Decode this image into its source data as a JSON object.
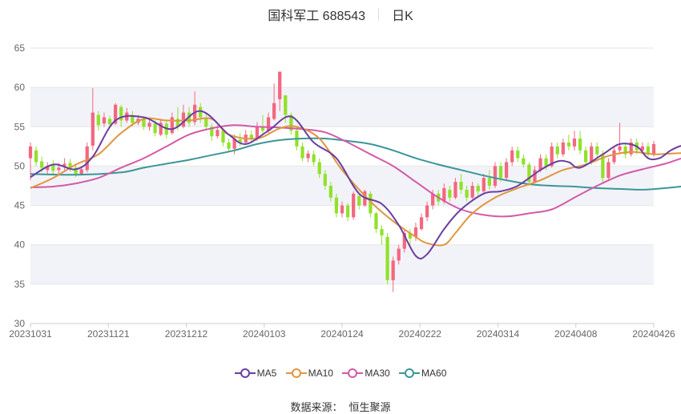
{
  "header": {
    "stock_name_code": "国科军工 688543",
    "period": "日K"
  },
  "footer": {
    "source_label": "数据来源：",
    "source_value": "恒生聚源"
  },
  "colors": {
    "up": "#f4677f",
    "down": "#91e12b",
    "grid": "#e6e6e6",
    "band": "#f2f3f8",
    "ma5": "#6a3fa0",
    "ma10": "#e0963f",
    "ma30": "#d35aa8",
    "ma60": "#3b9698"
  },
  "chart_data": {
    "type": "candlestick",
    "title": "国科军工 688543 日K",
    "ylim": [
      30,
      65
    ],
    "yticks": [
      30,
      35,
      40,
      45,
      50,
      55,
      60,
      65
    ],
    "xtick_labels": [
      "20231031",
      "20231121",
      "20231212",
      "20240103",
      "20240124",
      "20240222",
      "20240314",
      "20240408",
      "20240426"
    ],
    "grid": true,
    "legend_position": "bottom",
    "legend": [
      "MA5",
      "MA10",
      "MA30",
      "MA60"
    ],
    "candles": [
      [
        51.0,
        52.5,
        48.2,
        53.0
      ],
      [
        52.0,
        50.5,
        50.0,
        52.5
      ],
      [
        50.6,
        49.8,
        49.2,
        51.2
      ],
      [
        49.5,
        50.0,
        49.0,
        50.5
      ],
      [
        50.2,
        49.4,
        49.0,
        50.8
      ],
      [
        49.5,
        49.8,
        49.0,
        50.4
      ],
      [
        50.0,
        50.3,
        49.5,
        51.0
      ],
      [
        50.4,
        49.8,
        49.3,
        50.9
      ],
      [
        49.8,
        49.0,
        48.6,
        50.2
      ],
      [
        49.0,
        49.6,
        48.8,
        50.0
      ],
      [
        49.5,
        52.5,
        49.2,
        53.0
      ],
      [
        52.6,
        56.8,
        52.0,
        59.9
      ],
      [
        56.5,
        55.2,
        54.5,
        57.0
      ],
      [
        55.4,
        56.2,
        55.0,
        56.8
      ],
      [
        56.0,
        55.3,
        54.8,
        56.4
      ],
      [
        55.4,
        57.8,
        55.2,
        58.0
      ],
      [
        57.5,
        55.8,
        55.0,
        57.8
      ],
      [
        55.8,
        56.8,
        55.5,
        57.4
      ],
      [
        56.5,
        55.5,
        55.0,
        57.0
      ],
      [
        55.5,
        56.0,
        55.2,
        56.5
      ],
      [
        56.0,
        55.0,
        54.6,
        56.3
      ],
      [
        55.0,
        55.5,
        54.5,
        56.0
      ],
      [
        55.4,
        54.2,
        53.8,
        55.8
      ],
      [
        54.0,
        55.5,
        53.8,
        56.0
      ],
      [
        55.4,
        54.0,
        53.5,
        55.8
      ],
      [
        54.2,
        56.2,
        54.0,
        56.8
      ],
      [
        56.0,
        55.0,
        54.5,
        57.5
      ],
      [
        55.0,
        56.8,
        54.8,
        57.8
      ],
      [
        56.8,
        55.5,
        55.0,
        57.5
      ],
      [
        55.6,
        57.8,
        55.2,
        59.5
      ],
      [
        57.5,
        56.2,
        55.5,
        58.0
      ],
      [
        56.0,
        55.0,
        54.5,
        56.6
      ],
      [
        55.0,
        53.8,
        53.2,
        55.4
      ],
      [
        53.8,
        54.6,
        53.5,
        55.2
      ],
      [
        54.5,
        53.0,
        52.5,
        54.8
      ],
      [
        53.0,
        52.2,
        51.8,
        53.5
      ],
      [
        52.2,
        53.5,
        51.5,
        54.0
      ],
      [
        53.4,
        53.0,
        52.5,
        54.2
      ],
      [
        53.0,
        54.0,
        52.8,
        54.6
      ],
      [
        54.0,
        53.4,
        53.0,
        54.5
      ],
      [
        53.5,
        55.0,
        53.2,
        55.6
      ],
      [
        55.0,
        54.5,
        54.0,
        56.5
      ],
      [
        54.5,
        56.2,
        54.2,
        56.8
      ],
      [
        56.0,
        58.0,
        55.8,
        60.5
      ],
      [
        58.5,
        62.0,
        57.0,
        62.0
      ],
      [
        59.0,
        56.5,
        55.5,
        59.0
      ],
      [
        56.5,
        54.5,
        54.0,
        56.8
      ],
      [
        54.5,
        52.5,
        52.0,
        55.0
      ],
      [
        52.5,
        51.0,
        50.6,
        53.0
      ],
      [
        51.0,
        51.6,
        50.5,
        52.0
      ],
      [
        51.5,
        50.5,
        50.0,
        52.0
      ],
      [
        50.5,
        49.0,
        48.5,
        51.0
      ],
      [
        49.0,
        47.5,
        47.0,
        49.5
      ],
      [
        47.5,
        46.0,
        45.5,
        48.0
      ],
      [
        46.0,
        44.0,
        43.5,
        46.5
      ],
      [
        44.0,
        45.0,
        43.5,
        45.5
      ],
      [
        45.0,
        43.5,
        43.0,
        45.3
      ],
      [
        43.5,
        46.5,
        43.2,
        46.8
      ],
      [
        46.2,
        45.0,
        44.5,
        46.5
      ],
      [
        45.0,
        46.8,
        44.8,
        47.0
      ],
      [
        46.5,
        44.0,
        43.5,
        46.8
      ],
      [
        44.0,
        42.0,
        41.5,
        44.2
      ],
      [
        42.0,
        41.2,
        40.0,
        42.5
      ],
      [
        41.0,
        35.5,
        35.0,
        41.5
      ],
      [
        35.5,
        38.0,
        34.0,
        38.5
      ],
      [
        38.0,
        39.5,
        37.5,
        40.0
      ],
      [
        39.5,
        41.5,
        39.0,
        42.0
      ],
      [
        41.5,
        40.8,
        40.0,
        42.0
      ],
      [
        41.0,
        42.2,
        40.5,
        42.8
      ],
      [
        42.0,
        43.5,
        41.8,
        44.0
      ],
      [
        43.5,
        45.0,
        43.0,
        45.5
      ],
      [
        45.0,
        46.5,
        44.5,
        47.0
      ],
      [
        46.5,
        45.5,
        45.0,
        47.0
      ],
      [
        45.5,
        47.2,
        45.2,
        47.8
      ],
      [
        47.0,
        46.0,
        45.5,
        47.5
      ],
      [
        46.0,
        48.0,
        45.8,
        48.5
      ],
      [
        48.0,
        47.0,
        46.5,
        49.0
      ],
      [
        47.0,
        46.0,
        45.5,
        47.5
      ],
      [
        46.0,
        47.5,
        45.8,
        48.0
      ],
      [
        47.5,
        46.8,
        46.2,
        47.8
      ],
      [
        46.8,
        48.5,
        46.5,
        49.0
      ],
      [
        48.5,
        47.5,
        47.0,
        49.5
      ],
      [
        47.5,
        50.0,
        47.2,
        50.5
      ],
      [
        50.0,
        48.5,
        48.0,
        50.5
      ],
      [
        48.5,
        50.5,
        48.2,
        51.0
      ],
      [
        50.5,
        52.0,
        50.0,
        52.5
      ],
      [
        52.0,
        51.0,
        50.5,
        52.5
      ],
      [
        51.0,
        50.2,
        49.8,
        51.5
      ],
      [
        50.2,
        48.0,
        47.5,
        50.5
      ],
      [
        48.0,
        49.5,
        47.8,
        50.0
      ],
      [
        49.5,
        51.0,
        49.2,
        51.5
      ],
      [
        51.0,
        50.0,
        49.5,
        51.5
      ],
      [
        50.0,
        52.5,
        49.8,
        53.0
      ],
      [
        52.5,
        51.5,
        51.0,
        53.0
      ],
      [
        51.5,
        53.0,
        51.2,
        53.5
      ],
      [
        53.0,
        52.5,
        52.0,
        54.0
      ],
      [
        52.5,
        53.5,
        52.0,
        54.5
      ],
      [
        53.5,
        52.0,
        51.5,
        54.5
      ],
      [
        52.0,
        50.5,
        50.0,
        52.5
      ],
      [
        50.5,
        52.5,
        50.2,
        53.0
      ],
      [
        52.5,
        51.5,
        51.0,
        53.0
      ],
      [
        51.5,
        48.5,
        48.0,
        52.0
      ],
      [
        48.5,
        50.5,
        48.2,
        51.0
      ],
      [
        50.5,
        52.0,
        50.2,
        52.5
      ],
      [
        52.0,
        52.5,
        51.5,
        55.5
      ],
      [
        52.5,
        51.5,
        51.0,
        53.0
      ],
      [
        51.5,
        53.0,
        51.2,
        53.5
      ],
      [
        53.0,
        52.0,
        51.5,
        53.5
      ],
      [
        52.0,
        52.5,
        51.5,
        53.0
      ],
      [
        52.5,
        51.5,
        51.0,
        53.0
      ],
      [
        51.5,
        52.8,
        51.2,
        53.2
      ]
    ],
    "ma5": [
      [
        0,
        48.6
      ],
      [
        4,
        50.2
      ],
      [
        8,
        49.6
      ],
      [
        11,
        51.2
      ],
      [
        15,
        55.8
      ],
      [
        20,
        56.2
      ],
      [
        25,
        54.7
      ],
      [
        30,
        57.0
      ],
      [
        35,
        54.0
      ],
      [
        38,
        52.8
      ],
      [
        42,
        54.5
      ],
      [
        46,
        56.3
      ],
      [
        50,
        53.0
      ],
      [
        54,
        51.0
      ],
      [
        58,
        46.5
      ],
      [
        62,
        45.2
      ],
      [
        65,
        42.5
      ],
      [
        68,
        38.6
      ],
      [
        70,
        38.8
      ],
      [
        73,
        42.0
      ],
      [
        76,
        44.5
      ],
      [
        80,
        46.5
      ],
      [
        83,
        46.8
      ],
      [
        86,
        47.5
      ],
      [
        90,
        49.5
      ],
      [
        93,
        50.6
      ],
      [
        95,
        50.5
      ],
      [
        97,
        49.8
      ],
      [
        101,
        51.5
      ],
      [
        104,
        52.8
      ],
      [
        107,
        52.5
      ],
      [
        109,
        51.0
      ],
      [
        111,
        51.0
      ],
      [
        113,
        52.0
      ],
      [
        115,
        52.6
      ],
      [
        117,
        52.5
      ]
    ],
    "ma10": [
      [
        0,
        47.2
      ],
      [
        4,
        48.5
      ],
      [
        8,
        50.2
      ],
      [
        12,
        51.5
      ],
      [
        16,
        54.2
      ],
      [
        20,
        56.0
      ],
      [
        24,
        55.8
      ],
      [
        28,
        55.8
      ],
      [
        32,
        56.0
      ],
      [
        35,
        54.0
      ],
      [
        40,
        53.5
      ],
      [
        44,
        54.8
      ],
      [
        47,
        55.0
      ],
      [
        51,
        53.5
      ],
      [
        55,
        49.5
      ],
      [
        60,
        45.5
      ],
      [
        64,
        43.0
      ],
      [
        68,
        41.0
      ],
      [
        70,
        40.2
      ],
      [
        73,
        40.0
      ],
      [
        75,
        41.5
      ],
      [
        78,
        44.0
      ],
      [
        82,
        46.0
      ],
      [
        86,
        47.2
      ],
      [
        90,
        48.2
      ],
      [
        94,
        49.5
      ],
      [
        98,
        50.2
      ],
      [
        102,
        51.3
      ],
      [
        106,
        51.8
      ],
      [
        110,
        51.5
      ],
      [
        113,
        51.6
      ],
      [
        117,
        51.7
      ]
    ],
    "ma30": [
      [
        0,
        47.3
      ],
      [
        4,
        47.4
      ],
      [
        8,
        47.8
      ],
      [
        12,
        48.5
      ],
      [
        16,
        49.8
      ],
      [
        20,
        51.0
      ],
      [
        24,
        52.5
      ],
      [
        28,
        54.0
      ],
      [
        32,
        54.8
      ],
      [
        36,
        55.2
      ],
      [
        40,
        55.0
      ],
      [
        44,
        54.9
      ],
      [
        48,
        54.7
      ],
      [
        52,
        54.3
      ],
      [
        56,
        53.0
      ],
      [
        60,
        51.5
      ],
      [
        64,
        50.0
      ],
      [
        68,
        48.0
      ],
      [
        72,
        46.0
      ],
      [
        76,
        44.5
      ],
      [
        80,
        43.8
      ],
      [
        84,
        43.6
      ],
      [
        88,
        44.0
      ],
      [
        92,
        44.5
      ],
      [
        96,
        46.0
      ],
      [
        100,
        47.5
      ],
      [
        104,
        48.8
      ],
      [
        108,
        49.6
      ],
      [
        112,
        50.3
      ],
      [
        115,
        51.0
      ],
      [
        117,
        51.2
      ]
    ],
    "ma60": [
      [
        0,
        49.0
      ],
      [
        8,
        48.9
      ],
      [
        16,
        49.2
      ],
      [
        20,
        49.8
      ],
      [
        24,
        50.3
      ],
      [
        28,
        50.8
      ],
      [
        32,
        51.4
      ],
      [
        36,
        52.0
      ],
      [
        40,
        52.8
      ],
      [
        44,
        53.3
      ],
      [
        48,
        53.5
      ],
      [
        52,
        53.5
      ],
      [
        56,
        53.2
      ],
      [
        60,
        52.8
      ],
      [
        64,
        52.0
      ],
      [
        68,
        51.0
      ],
      [
        72,
        50.2
      ],
      [
        76,
        49.5
      ],
      [
        80,
        48.8
      ],
      [
        84,
        48.2
      ],
      [
        88,
        47.7
      ],
      [
        92,
        47.5
      ],
      [
        96,
        47.4
      ],
      [
        100,
        47.2
      ],
      [
        104,
        47.1
      ],
      [
        108,
        47.0
      ],
      [
        112,
        47.2
      ],
      [
        117,
        47.6
      ]
    ]
  }
}
